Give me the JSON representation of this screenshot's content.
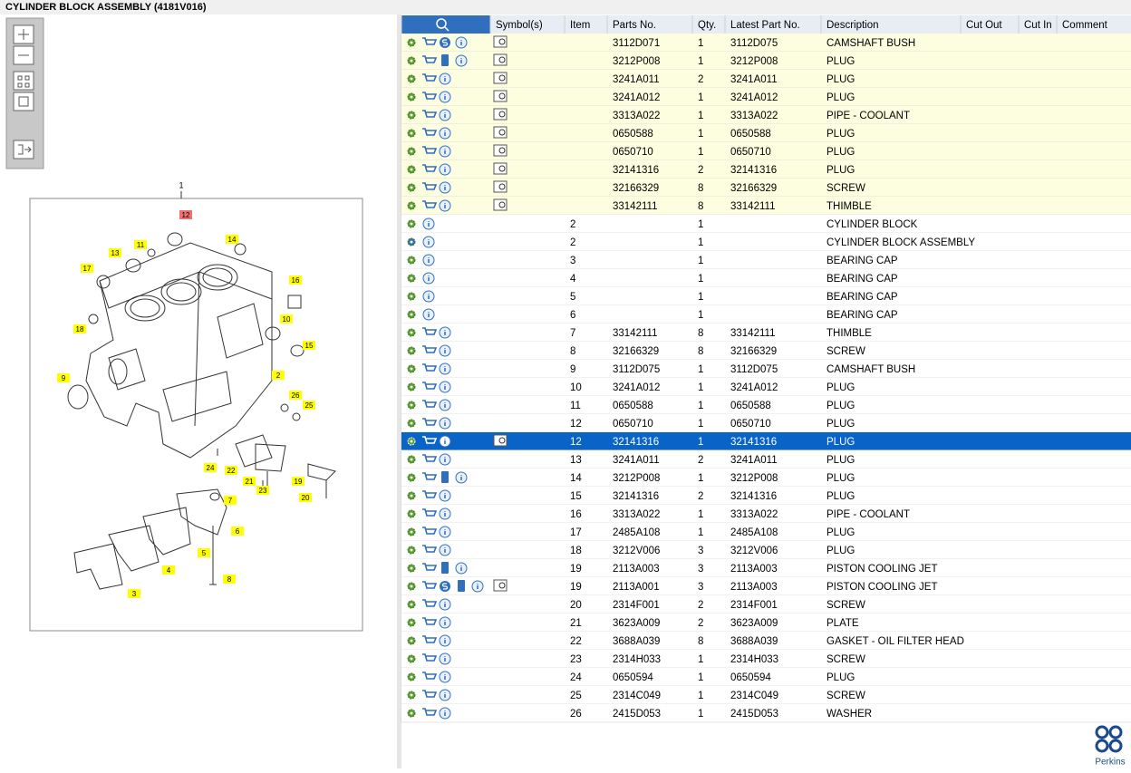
{
  "header": {
    "title": "CYLINDER BLOCK ASSEMBLY (4181V016)"
  },
  "diagram": {
    "top_label": "1",
    "callouts": [
      "12",
      "13",
      "11",
      "14",
      "17",
      "16",
      "10",
      "18",
      "15",
      "9",
      "2",
      "26",
      "25",
      "24",
      "22",
      "21",
      "23",
      "19",
      "20",
      "7",
      "6",
      "5",
      "4",
      "8",
      "3"
    ]
  },
  "table": {
    "columns": [
      "Symbol(s)",
      "Item",
      "Parts No.",
      "Qty.",
      "Latest Part No.",
      "Description",
      "Cut Out",
      "Cut In",
      "Comment"
    ],
    "rows": [
      {
        "parts_no": "3112D071",
        "qty": 1,
        "latest_part_no": "3112D075",
        "description": "CAMSHAFT BUSH"
      },
      {
        "parts_no": "3212P008",
        "qty": 1,
        "latest_part_no": "3212P008",
        "description": "PLUG"
      },
      {
        "parts_no": "3241A011",
        "qty": 2,
        "latest_part_no": "3241A011",
        "description": "PLUG"
      },
      {
        "parts_no": "3241A012",
        "qty": 1,
        "latest_part_no": "3241A012",
        "description": "PLUG"
      },
      {
        "parts_no": "3313A022",
        "qty": 1,
        "latest_part_no": "3313A022",
        "description": "PIPE - COOLANT"
      },
      {
        "parts_no": "0650588",
        "qty": 1,
        "latest_part_no": "0650588",
        "description": "PLUG"
      },
      {
        "parts_no": "0650710",
        "qty": 1,
        "latest_part_no": "0650710",
        "description": "PLUG"
      },
      {
        "parts_no": "32141316",
        "qty": 2,
        "latest_part_no": "32141316",
        "description": "PLUG"
      },
      {
        "parts_no": "32166329",
        "qty": 8,
        "latest_part_no": "32166329",
        "description": "SCREW"
      },
      {
        "parts_no": "33142111",
        "qty": 8,
        "latest_part_no": "33142111",
        "description": "THIMBLE"
      },
      {
        "item": 2,
        "qty": 1,
        "description": "CYLINDER BLOCK"
      },
      {
        "item": 2,
        "qty": 1,
        "description": "CYLINDER BLOCK ASSEMBLY"
      },
      {
        "item": 3,
        "qty": 1,
        "description": "BEARING CAP"
      },
      {
        "item": 4,
        "qty": 1,
        "description": "BEARING CAP"
      },
      {
        "item": 5,
        "qty": 1,
        "description": "BEARING CAP"
      },
      {
        "item": 6,
        "qty": 1,
        "description": "BEARING CAP"
      },
      {
        "item": 7,
        "parts_no": "33142111",
        "qty": 8,
        "latest_part_no": "33142111",
        "description": "THIMBLE"
      },
      {
        "item": 8,
        "parts_no": "32166329",
        "qty": 8,
        "latest_part_no": "32166329",
        "description": "SCREW"
      },
      {
        "item": 9,
        "parts_no": "3112D075",
        "qty": 1,
        "latest_part_no": "3112D075",
        "description": "CAMSHAFT BUSH"
      },
      {
        "item": 10,
        "parts_no": "3241A012",
        "qty": 1,
        "latest_part_no": "3241A012",
        "description": "PLUG"
      },
      {
        "item": 11,
        "parts_no": "0650588",
        "qty": 1,
        "latest_part_no": "0650588",
        "description": "PLUG"
      },
      {
        "item": 12,
        "parts_no": "0650710",
        "qty": 1,
        "latest_part_no": "0650710",
        "description": "PLUG"
      },
      {
        "item": 12,
        "parts_no": "32141316",
        "qty": 1,
        "latest_part_no": "32141316",
        "description": "PLUG"
      },
      {
        "item": 13,
        "parts_no": "3241A011",
        "qty": 2,
        "latest_part_no": "3241A011",
        "description": "PLUG"
      },
      {
        "item": 14,
        "parts_no": "3212P008",
        "qty": 1,
        "latest_part_no": "3212P008",
        "description": "PLUG"
      },
      {
        "item": 15,
        "parts_no": "32141316",
        "qty": 2,
        "latest_part_no": "32141316",
        "description": "PLUG"
      },
      {
        "item": 16,
        "parts_no": "3313A022",
        "qty": 1,
        "latest_part_no": "3313A022",
        "description": "PIPE - COOLANT"
      },
      {
        "item": 17,
        "parts_no": "2485A108",
        "qty": 1,
        "latest_part_no": "2485A108",
        "description": "PLUG"
      },
      {
        "item": 18,
        "parts_no": "3212V006",
        "qty": 3,
        "latest_part_no": "3212V006",
        "description": "PLUG"
      },
      {
        "item": 19,
        "parts_no": "2113A003",
        "qty": 3,
        "latest_part_no": "2113A003",
        "description": "PISTON COOLING JET"
      },
      {
        "item": 19,
        "parts_no": "2113A001",
        "qty": 3,
        "latest_part_no": "2113A003",
        "description": "PISTON COOLING JET"
      },
      {
        "item": 20,
        "parts_no": "2314F001",
        "qty": 2,
        "latest_part_no": "2314F001",
        "description": "SCREW"
      },
      {
        "item": 21,
        "parts_no": "3623A009",
        "qty": 2,
        "latest_part_no": "3623A009",
        "description": "PLATE"
      },
      {
        "item": 22,
        "parts_no": "3688A039",
        "qty": 8,
        "latest_part_no": "3688A039",
        "description": "GASKET - OIL FILTER HEAD"
      },
      {
        "item": 23,
        "parts_no": "2314H033",
        "qty": 1,
        "latest_part_no": "2314H033",
        "description": "SCREW"
      },
      {
        "item": 24,
        "parts_no": "0650594",
        "qty": 1,
        "latest_part_no": "0650594",
        "description": "PLUG"
      },
      {
        "item": 25,
        "parts_no": "2314C049",
        "qty": 1,
        "latest_part_no": "2314C049",
        "description": "SCREW"
      },
      {
        "item": 26,
        "parts_no": "2415D053",
        "qty": 1,
        "latest_part_no": "2415D053",
        "description": "WASHER"
      }
    ]
  },
  "footer": {
    "logo": "Perkins"
  }
}
